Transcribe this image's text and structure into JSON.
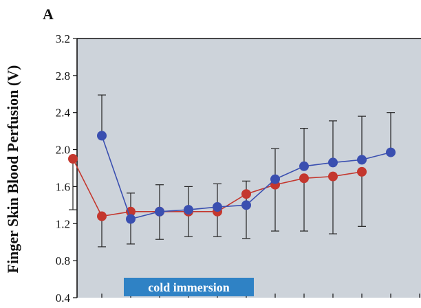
{
  "panel_label": "A",
  "chart_data": {
    "type": "line",
    "ylabel": "Finger Skin Blood Perfusion (V)",
    "xlabel": "",
    "ylim": [
      0.4,
      3.2
    ],
    "yticks": [
      "3.2",
      "2.8",
      "2.4",
      "2.0",
      "1.6",
      "1.2",
      "0.8",
      "0.4"
    ],
    "grid": false,
    "x": [
      1,
      2,
      3,
      4,
      5,
      6,
      7,
      8,
      9,
      10,
      11,
      12
    ],
    "series": [
      {
        "color": "#3a4fb0",
        "values": [
          2.15,
          1.25,
          1.33,
          1.35,
          1.38,
          1.4,
          1.68,
          1.82,
          1.86,
          1.89,
          1.97
        ],
        "x": [
          1,
          2,
          3,
          4,
          5,
          6,
          7,
          8,
          9,
          10,
          11
        ],
        "error_upper": [
          2.59,
          1.53,
          1.62,
          1.6,
          1.63,
          1.66,
          2.01,
          2.23,
          2.31,
          2.36,
          2.4
        ]
      },
      {
        "color": "#c4372e",
        "values": [
          1.9,
          1.28,
          1.33,
          1.33,
          1.33,
          1.33,
          1.52,
          1.62,
          1.69,
          1.71,
          1.76
        ],
        "x": [
          0,
          1,
          2,
          3,
          4,
          5,
          6,
          7,
          8,
          9,
          10
        ],
        "error_lower": [
          1.35,
          0.95,
          0.98,
          1.03,
          1.06,
          1.06,
          1.04,
          1.12,
          1.12,
          1.09,
          1.17
        ]
      }
    ],
    "annotation": {
      "text": "cold immersion",
      "color": "#2f82c5"
    },
    "plot_background": "#cdd3da"
  }
}
